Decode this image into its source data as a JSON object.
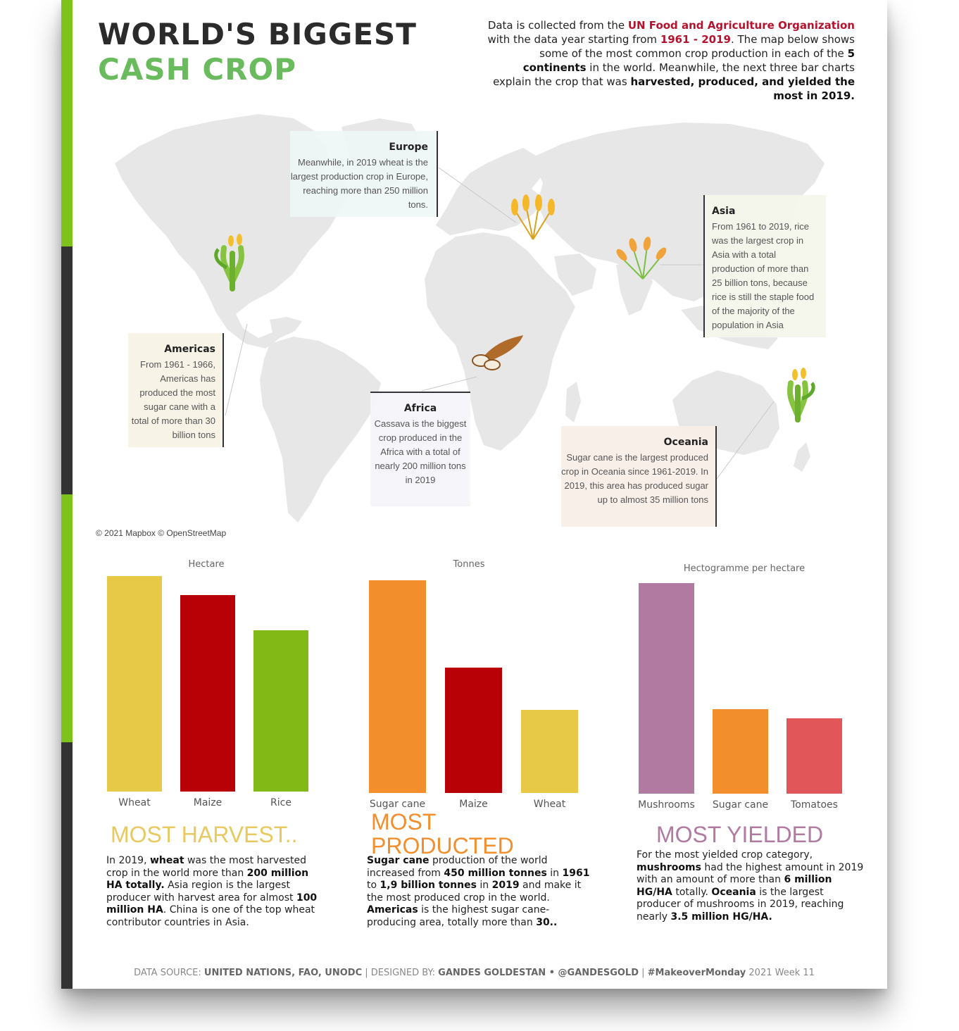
{
  "title": {
    "line1": "WORLD'S BIGGEST",
    "line2": "CASH CROP"
  },
  "intro": {
    "t1": "Data is collected from the ",
    "source": "UN Food and Agriculture Organization",
    "t2": " with the data year starting from ",
    "years": "1961 - 2019",
    "t3": ". The map below shows some of the most common crop production in each of the ",
    "continents": "5 continents",
    "t4": " in the world. Meanwhile, the next three bar charts explain the crop that was ",
    "emph": "harvested, produced, and yielded the most in 2019."
  },
  "map": {
    "credit": "© 2021 Mapbox © OpenStreetMap",
    "callouts": {
      "europe": {
        "title": "Europe",
        "text": "Meanwhile, in 2019 wheat is the largest production crop in Europe, reaching more than 250 million tons."
      },
      "asia": {
        "title": "Asia",
        "text": "From 1961 to 2019, rice was the largest crop in Asia with a total production of more than 25 billion tons, because rice is still the staple food of the majority of the population in Asia"
      },
      "americas": {
        "title": "Americas",
        "text": "From 1961 - 1966, Americas has produced the most sugar cane with a total of more than 30 billion tons"
      },
      "africa": {
        "title": "Africa",
        "text": "Cassava is the biggest crop produced in the Africa with a total of nearly 200 million tons in 2019"
      },
      "oceania": {
        "title": "Oceania",
        "text": "Sugar cane is the largest produced crop in Oceania since 1961-2019. In 2019, this area has produced sugar up to almost 35 million tons"
      }
    }
  },
  "chart_data": [
    {
      "type": "bar",
      "unit_label": "Hectare",
      "categories": [
        "Wheat",
        "Maize",
        "Rice"
      ],
      "values": [
        216,
        197,
        162
      ],
      "colors": [
        "#e8c847",
        "#b80007",
        "#83b916"
      ],
      "ylim": [
        0,
        216
      ],
      "grid": false,
      "title": "MOST HARVEST..",
      "title_color": "#e8c960",
      "description": [
        {
          "t": "In 2019, "
        },
        {
          "b": "wheat"
        },
        {
          "t": " was the most harvested crop in the world more than "
        },
        {
          "b": "200 million HA totally."
        },
        {
          "t": " Asia region is the largest producer with harvest area for almost "
        },
        {
          "b": "100 million HA"
        },
        {
          "t": ". China is one of the top wheat contributor countries in Asia."
        }
      ]
    },
    {
      "type": "bar",
      "unit_label": "Tonnes",
      "categories": [
        "Sugar cane",
        "Maize",
        "Wheat"
      ],
      "values": [
        1950,
        1150,
        765
      ],
      "colors": [
        "#f28e2b",
        "#b80007",
        "#e8c847"
      ],
      "ylim": [
        0,
        1950
      ],
      "grid": false,
      "title": "MOST PRODUCTED",
      "title_color": "#f28e2b",
      "description": [
        {
          "b": "Sugar cane"
        },
        {
          "t": " production of the world increased from "
        },
        {
          "b": "450 million tonnes"
        },
        {
          "t": " in "
        },
        {
          "b": "1961"
        },
        {
          "t": " to "
        },
        {
          "b": "1,9 billion tonnes"
        },
        {
          "t": " in "
        },
        {
          "b": "2019"
        },
        {
          "t": " and make it the most produced crop in the world. "
        },
        {
          "b": "Americas"
        },
        {
          "t": " is the highest sugar cane-producing area, totally more than "
        },
        {
          "b": "30.."
        }
      ]
    },
    {
      "type": "bar",
      "unit_label": "Hectogramme per hectare",
      "categories": [
        "Mushrooms",
        "Sugar cane",
        "Tomatoes"
      ],
      "values": [
        6100,
        2450,
        2180
      ],
      "colors": [
        "#b07aa1",
        "#f28e2b",
        "#e15759"
      ],
      "ylim": [
        0,
        6100
      ],
      "grid": false,
      "title": "MOST YIELDED",
      "title_color": "#b07aa1",
      "description": [
        {
          "t": "For the most yielded crop category, "
        },
        {
          "b": "mushrooms"
        },
        {
          "t": " had the highest amount in 2019 with an amount of more than "
        },
        {
          "b": "6 million HG/HA"
        },
        {
          "t": " totally. "
        },
        {
          "b": "Oceania"
        },
        {
          "t": " is the largest producer of mushrooms in 2019, reaching nearly "
        },
        {
          "b": "3.5 million HG/HA."
        }
      ]
    }
  ],
  "footer": {
    "p1": "DATA SOURCE: ",
    "b1": "UNITED NATIONS, FAO, UNODC",
    "p2": "  |  DESIGNED BY: ",
    "b2": "GANDES GOLDESTAN • @GANDESGOLD",
    "p3": "  |  ",
    "b3": "#MakeoverMonday",
    "p4": " 2021 Week 11"
  },
  "colors": {
    "green_stripe": "#7ec31a",
    "dark_stripe": "#333333",
    "map_land": "#e7e7e7"
  },
  "icons": [
    "corn-icon",
    "wheat-icon",
    "rice-icon",
    "cassava-icon",
    "sugar-cane-icon"
  ]
}
